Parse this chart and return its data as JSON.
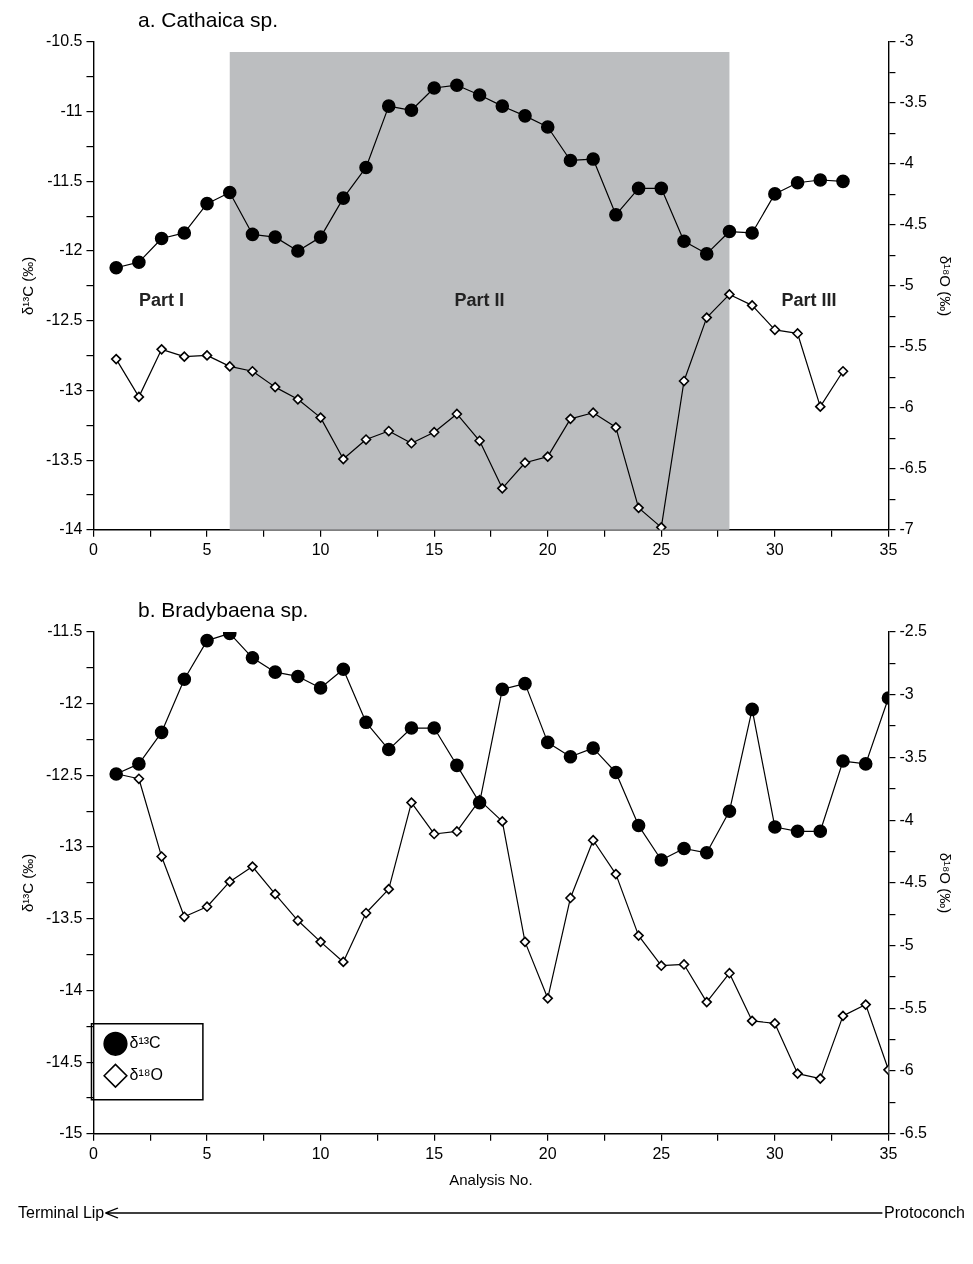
{
  "chart_data": [
    {
      "type": "line",
      "title": "a. Cathaica sp.",
      "ylabel": "δ¹³C (‰)",
      "y2label": "δ¹⁸O (‰)",
      "x": [
        1,
        2,
        3,
        4,
        5,
        6,
        7,
        8,
        9,
        10,
        11,
        12,
        13,
        14,
        15,
        16,
        17,
        18,
        19,
        20,
        21,
        22,
        23,
        24,
        25,
        26,
        27,
        28,
        29,
        30,
        31,
        32,
        33
      ],
      "series": [
        {
          "color": "#000000",
          "marker": "circle",
          "values": [
            -12.12,
            -12.08,
            -11.91,
            -11.87,
            -11.66,
            -11.58,
            -11.88,
            -11.9,
            -12.0,
            -11.9,
            -11.62,
            -11.4,
            -10.96,
            -10.99,
            -10.83,
            -10.81,
            -10.88,
            -10.96,
            -11.03,
            -11.11,
            -11.35,
            -11.34,
            -11.74,
            -11.55,
            -11.55,
            -11.93,
            -12.02,
            -11.86,
            -11.87,
            -11.59,
            -11.51,
            -11.49,
            -11.5
          ]
        },
        {
          "color": "#000000",
          "marker": "diamond",
          "axis": "y2",
          "values": [
            -5.6,
            -5.91,
            -5.52,
            -5.58,
            -5.57,
            -5.66,
            -5.7,
            -5.83,
            -5.93,
            -6.08,
            -6.42,
            -6.26,
            -6.19,
            -6.29,
            -6.2,
            -6.05,
            -6.27,
            -6.66,
            -6.45,
            -6.4,
            -6.09,
            -6.04,
            -6.16,
            -6.82,
            -6.98,
            -5.78,
            -5.26,
            -5.07,
            -5.16,
            -5.36,
            -5.39,
            -5.99,
            -5.7
          ]
        }
      ],
      "xlim": [
        0,
        35
      ],
      "xticks": [
        0,
        {
          "value": 2.5,
          "label": null
        },
        5,
        {
          "value": 7.5,
          "label": null
        },
        10,
        {
          "value": 12.5,
          "label": null
        },
        15,
        {
          "value": 17.5,
          "label": null
        },
        20,
        {
          "value": 22.5,
          "label": null
        },
        25,
        {
          "value": 27.5,
          "label": null
        },
        30,
        {
          "value": 32.5,
          "label": null
        },
        35
      ],
      "ylim": [
        -14,
        -10.5
      ],
      "yticks": [
        -14,
        {
          "value": -13.75,
          "label": null
        },
        -13.5,
        {
          "value": -13.25,
          "label": null
        },
        -13,
        {
          "value": -12.75,
          "label": null
        },
        -12.5,
        {
          "value": -12.25,
          "label": null
        },
        -12,
        {
          "value": -11.75,
          "label": null
        },
        -11.5,
        {
          "value": -11.25,
          "label": null
        },
        -11,
        {
          "value": -10.75,
          "label": null
        },
        -10.5
      ],
      "y2lim": [
        -7,
        -3
      ],
      "y2ticks": [
        -7,
        {
          "value": -6.75,
          "label": null
        },
        -6.5,
        {
          "value": -6.25,
          "label": null
        },
        -6,
        {
          "value": -5.75,
          "label": null
        },
        -5.5,
        {
          "value": -5.25,
          "label": null
        },
        -5,
        {
          "value": -4.75,
          "label": null
        },
        -4.5,
        {
          "value": -4.25,
          "label": null
        },
        -4,
        {
          "value": -3.75,
          "label": null
        },
        -3.5,
        {
          "value": -3.25,
          "label": null
        },
        -3
      ],
      "bands": [
        {
          "axis": "x",
          "from": 6,
          "to": 28,
          "label": "Part II",
          "color": "#bcbec0"
        }
      ],
      "annotations": [
        "Part I",
        "Part III"
      ],
      "grid": false,
      "legend": false
    },
    {
      "type": "line",
      "title": "b. Bradybaena sp.",
      "xlabel": "Analysis No.",
      "ylabel": "δ¹³C (‰)",
      "y2label": "δ¹⁸O (‰)",
      "x": [
        1,
        2,
        3,
        4,
        5,
        6,
        7,
        8,
        9,
        10,
        11,
        12,
        13,
        14,
        15,
        16,
        17,
        18,
        19,
        20,
        21,
        22,
        23,
        24,
        25,
        26,
        27,
        28,
        29,
        30,
        31,
        32,
        33,
        34,
        35
      ],
      "series": [
        {
          "name": "δ¹³C",
          "color": "#000000",
          "marker": "circle",
          "values": [
            -12.49,
            -12.42,
            -12.2,
            -11.83,
            -11.56,
            -11.51,
            -11.68,
            -11.78,
            -11.81,
            -11.89,
            -11.76,
            -12.13,
            -12.32,
            -12.17,
            -12.17,
            -12.43,
            -12.69,
            -11.9,
            -11.86,
            -12.27,
            -12.37,
            -12.31,
            -12.48,
            -12.85,
            -13.09,
            -13.01,
            -13.04,
            -12.75,
            -12.04,
            -12.86,
            -12.89,
            -12.89,
            -12.4,
            -12.42,
            -11.96
          ]
        },
        {
          "name": "δ¹⁸O",
          "color": "#000000",
          "marker": "diamond",
          "axis": "y2",
          "values": [
            -3.63,
            -3.67,
            -4.29,
            -4.77,
            -4.69,
            -4.49,
            -4.37,
            -4.59,
            -4.8,
            -4.97,
            -5.13,
            -4.74,
            -4.55,
            -3.86,
            -4.11,
            -4.09,
            -3.84,
            -4.01,
            -4.97,
            -5.42,
            -4.62,
            -4.16,
            -4.43,
            -4.92,
            -5.16,
            -5.15,
            -5.45,
            -5.22,
            -5.6,
            -5.62,
            -6.02,
            -6.06,
            -5.56,
            -5.47,
            -5.99
          ]
        }
      ],
      "xlim": [
        0,
        35
      ],
      "xticks": [
        0,
        {
          "value": 2.5,
          "label": null
        },
        5,
        {
          "value": 7.5,
          "label": null
        },
        10,
        {
          "value": 12.5,
          "label": null
        },
        15,
        {
          "value": 17.5,
          "label": null
        },
        20,
        {
          "value": 22.5,
          "label": null
        },
        25,
        {
          "value": 27.5,
          "label": null
        },
        30,
        {
          "value": 32.5,
          "label": null
        },
        35
      ],
      "ylim": [
        -15,
        -11.5
      ],
      "yticks": [
        -15,
        {
          "value": -14.75,
          "label": null
        },
        -14.5,
        {
          "value": -14.25,
          "label": null
        },
        -14,
        {
          "value": -13.75,
          "label": null
        },
        -13.5,
        {
          "value": -13.25,
          "label": null
        },
        -13,
        {
          "value": -12.75,
          "label": null
        },
        -12.5,
        {
          "value": -12.25,
          "label": null
        },
        -12,
        {
          "value": -11.75,
          "label": null
        },
        -11.5
      ],
      "y2lim": [
        -6.5,
        -2.5
      ],
      "y2ticks": [
        -6.5,
        {
          "value": -6.25,
          "label": null
        },
        -6,
        {
          "value": -5.75,
          "label": null
        },
        -5.5,
        {
          "value": -5.25,
          "label": null
        },
        -5,
        {
          "value": -4.75,
          "label": null
        },
        -4.5,
        {
          "value": -4.25,
          "label": null
        },
        -4,
        {
          "value": -3.75,
          "label": null
        },
        -3.5,
        {
          "value": -3.25,
          "label": null
        },
        -3,
        {
          "value": -2.75,
          "label": null
        },
        -2.5
      ],
      "annotations": [
        "Terminal Lip",
        "Protoconch"
      ],
      "grid": false,
      "legend": "bottom left"
    }
  ]
}
